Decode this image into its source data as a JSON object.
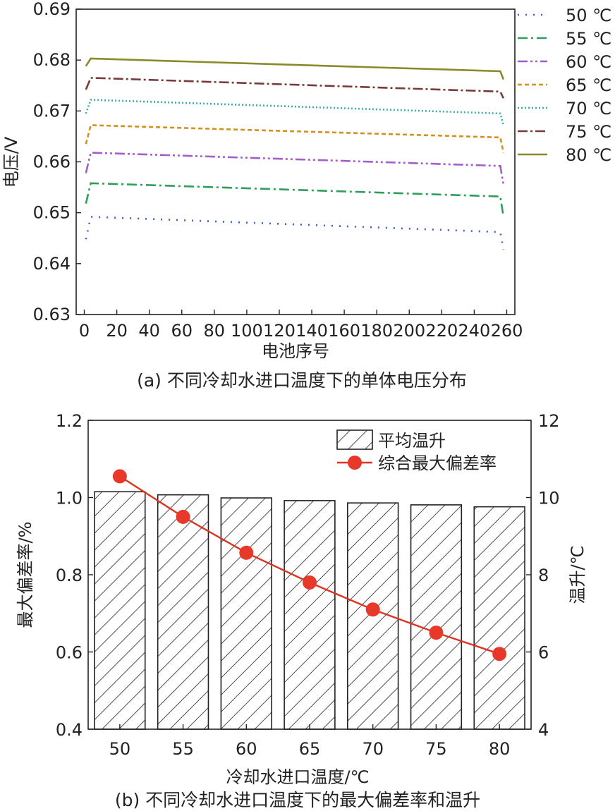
{
  "colors": {
    "axis": "#222222",
    "bar_fill": "#ffffff",
    "hatch": "#222222",
    "dev_line": "#dd3322",
    "dev_marker": "#e8382a"
  },
  "chart_data": [
    {
      "type": "line",
      "caption": "(a) 不同冷却水进口温度下的单体电压分布",
      "xlabel": "电池序号",
      "ylabel": "电压/V",
      "xlim": [
        -5,
        265
      ],
      "ylim": [
        0.63,
        0.69
      ],
      "xticks": [
        0,
        20,
        40,
        60,
        80,
        100,
        120,
        140,
        160,
        180,
        200,
        220,
        240,
        260
      ],
      "yticks": [
        0.63,
        0.64,
        0.65,
        0.66,
        0.67,
        0.68,
        0.69
      ],
      "ytick_labels": [
        "0.63",
        "0.64",
        "0.65",
        "0.66",
        "0.67",
        "0.68",
        "0.69"
      ],
      "legend_position": "outside-right",
      "series": [
        {
          "name": "50 ℃",
          "color": "#3a5fcd",
          "dash": "2 9",
          "start": 0.6448,
          "points": [
            [
              4,
              0.6492
            ],
            [
              256,
              0.6462
            ]
          ],
          "end": 0.6428
        },
        {
          "name": "55 ℃",
          "color": "#2e9e5b",
          "dash": "14 5 3 5",
          "start": 0.6518,
          "points": [
            [
              4,
              0.6558
            ],
            [
              256,
              0.6532
            ]
          ],
          "end": 0.6492
        },
        {
          "name": "60 ℃",
          "color": "#a35fc9",
          "dash": "14 4 3 4 3 4",
          "start": 0.6578,
          "points": [
            [
              4,
              0.6618
            ],
            [
              256,
              0.6592
            ]
          ],
          "end": 0.6555
        },
        {
          "name": "65 ℃",
          "color": "#d4901a",
          "dash": "6 4",
          "start": 0.6635,
          "points": [
            [
              4,
              0.6672
            ],
            [
              256,
              0.6648
            ]
          ],
          "end": 0.6618
        },
        {
          "name": "70 ℃",
          "color": "#38b0a6",
          "dash": "2 3",
          "start": 0.6695,
          "points": [
            [
              4,
              0.6722
            ],
            [
              256,
              0.6695
            ]
          ],
          "end": 0.6672
        },
        {
          "name": "75 ℃",
          "color": "#7a3a3a",
          "dash": "14 4 3 4",
          "start": 0.6742,
          "points": [
            [
              4,
              0.6765
            ],
            [
              256,
              0.6738
            ]
          ],
          "end": 0.6725
        },
        {
          "name": "80 ℃",
          "color": "#8a8a2a",
          "dash": "",
          "start": 0.6788,
          "points": [
            [
              4,
              0.6803
            ],
            [
              256,
              0.6778
            ]
          ],
          "end": 0.6762
        }
      ]
    },
    {
      "type": "bar",
      "caption": "(b) 不同冷却水进口温度下的最大偏差率和温升",
      "xlabel": "冷却水进口温度/℃",
      "ylabel_left": "最大偏差率/%",
      "ylabel_right": "温升/℃",
      "categories": [
        "50",
        "55",
        "60",
        "65",
        "70",
        "75",
        "80"
      ],
      "ylim_left": [
        0.4,
        1.2
      ],
      "yticks_left": [
        "0.4",
        "0.6",
        "0.8",
        "1.0",
        "1.2"
      ],
      "ylim_right": [
        4,
        12
      ],
      "yticks_right": [
        "4",
        "6",
        "8",
        "10",
        "12"
      ],
      "legend_position": "top-right",
      "series": [
        {
          "name": "平均温升",
          "kind": "bar",
          "axis": "right",
          "values": [
            10.15,
            10.07,
            9.99,
            9.92,
            9.86,
            9.81,
            9.76
          ]
        },
        {
          "name": "综合最大偏差率",
          "kind": "line-marker",
          "axis": "left",
          "values": [
            1.055,
            0.95,
            0.857,
            0.78,
            0.71,
            0.65,
            0.595
          ]
        }
      ]
    }
  ]
}
